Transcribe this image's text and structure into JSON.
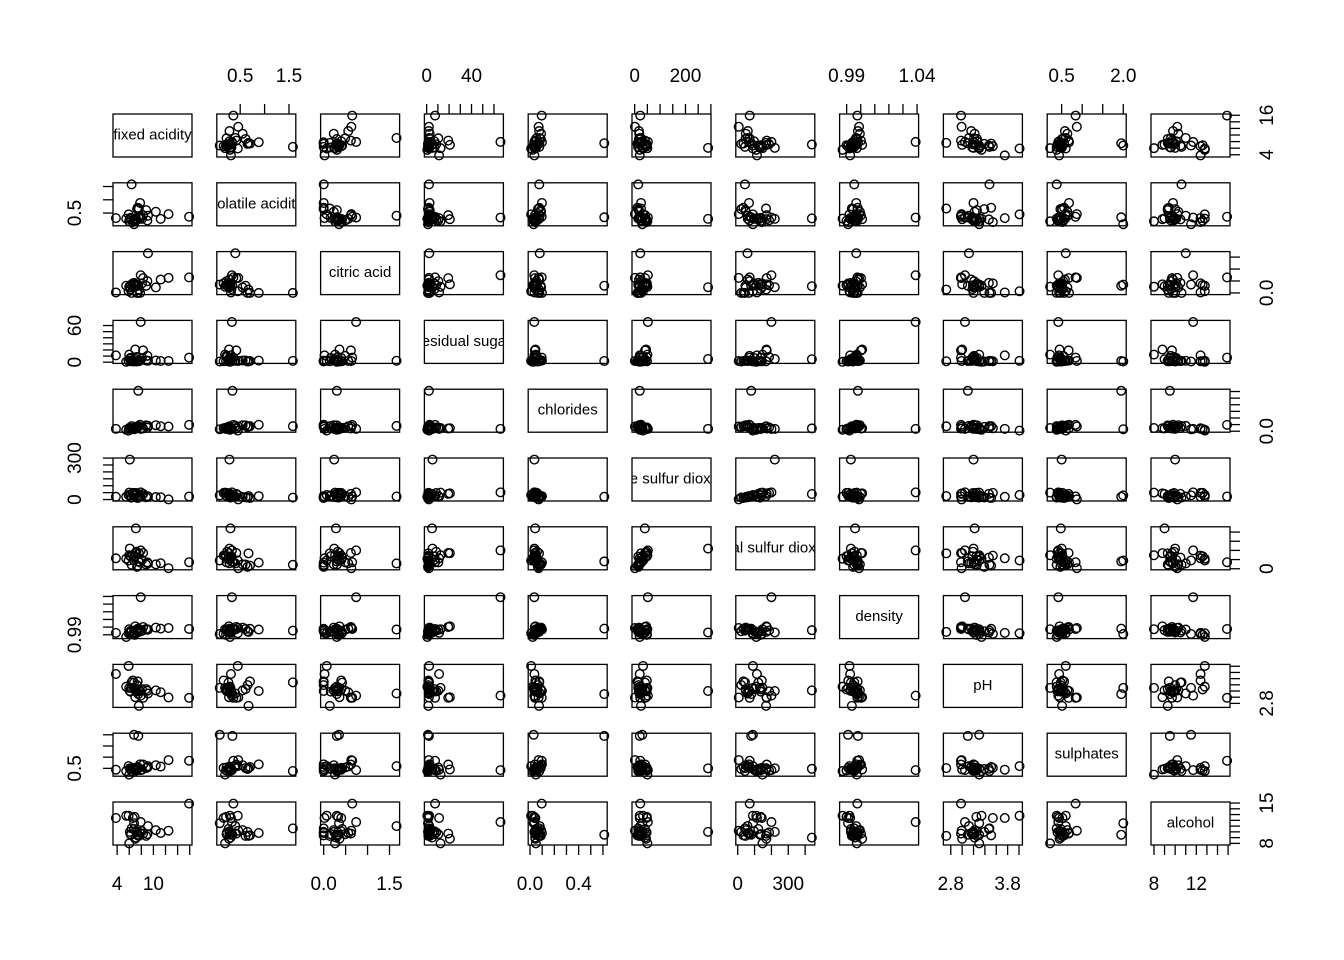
{
  "chart_data": {
    "type": "scatter-matrix",
    "variables": [
      {
        "name": "fixed acidity",
        "lim": [
          3.32,
          16.38
        ],
        "ticks": [
          4,
          6,
          8,
          10,
          12,
          14,
          16
        ],
        "values": [
          7.4,
          7.8,
          11.2,
          7.0,
          6.3,
          8.1,
          7.2,
          6.2,
          6.6,
          8.3,
          6.8,
          5.5,
          9.0,
          7.6,
          10.4,
          15.9,
          6.4,
          9.1,
          7.9,
          7.5,
          6.1,
          7.1,
          3.8,
          6.9,
          5.9,
          12.5,
          6.8,
          8.8,
          7.3,
          6.0
        ]
      },
      {
        "name": "volatile acidity",
        "lim": [
          0.02,
          1.64
        ],
        "ticks": [
          0.5,
          {
            "value": 1,
            "label": "1.0"
          },
          1.5
        ],
        "values": [
          0.7,
          0.88,
          0.28,
          0.27,
          0.3,
          0.28,
          0.23,
          0.32,
          0.16,
          0.42,
          0.26,
          0.29,
          0.22,
          0.67,
          0.55,
          0.36,
          1.58,
          0.4,
          0.33,
          0.34,
          0.28,
          0.3,
          0.31,
          0.21,
          0.45,
          0.46,
          0.08,
          0.61,
          0.65,
          0.19
        ]
      },
      {
        "name": "citric acid",
        "lim": [
          -0.07,
          1.73
        ],
        "ticks": [
          {
            "value": 0,
            "label": "0.0"
          },
          0.5,
          {
            "value": 1,
            "label": "1.0"
          },
          1.5
        ],
        "values": [
          0,
          0,
          0.56,
          0.36,
          0.34,
          0.4,
          0.32,
          0.16,
          0.4,
          0.62,
          0.42,
          0.3,
          0.49,
          0.14,
          0.23,
          0.65,
          0,
          1.66,
          0.74,
          0.3,
          0.24,
          0.28,
          0.02,
          0.33,
          0.07,
          0.63,
          0.35,
          0.3,
          0,
          0.26
        ]
      },
      {
        "name": "residual sugar",
        "lim": [
          -2.0,
          68.4
        ],
        "ticks": [
          0,
          10,
          20,
          30,
          40,
          50,
          60
        ],
        "values": [
          1.9,
          2.6,
          1.9,
          20.7,
          1.6,
          6.9,
          8.5,
          7.0,
          1.5,
          19.25,
          1.7,
          0.6,
          10.4,
          1.5,
          2.7,
          7.5,
          2.1,
          2.3,
          65.8,
          2.0,
          5.2,
          4.8,
          11.1,
          1.8,
          2.2,
          2.0,
          1.2,
          2.8,
          1.2,
          12.4
        ]
      },
      {
        "name": "chlorides",
        "lim": [
          -0.015,
          0.635
        ],
        "ticks": [
          {
            "value": 0,
            "label": "0.0"
          },
          0.1,
          0.2,
          0.3,
          0.4,
          0.5,
          0.6
        ],
        "values": [
          0.076,
          0.098,
          0.075,
          0.045,
          0.049,
          0.05,
          0.058,
          0.045,
          0.044,
          0.04,
          0.049,
          0.022,
          0.052,
          0.074,
          0.091,
          0.096,
          0.076,
          0.08,
          0.035,
          0.611,
          0.036,
          0.042,
          0.036,
          0.034,
          0.009,
          0.071,
          0.03,
          0.088,
          0.065,
          0.048
        ]
      },
      {
        "name": "free sulfur dioxide",
        "lim": [
          -10.5,
          300.5
        ],
        "ticks": [
          0,
          50,
          100,
          150,
          200,
          250,
          300
        ],
        "values": [
          11,
          25,
          17,
          45,
          14,
          30,
          47,
          30,
          48,
          41,
          41,
          20,
          25,
          25,
          18,
          22,
          14,
          22,
          52,
          20,
          289,
          40,
          20,
          48,
          33,
          1,
          30,
          17,
          15,
          50
        ]
      },
      {
        "name": "total sulfur dioxide",
        "lim": [
          -11.4,
          457.4
        ],
        "ticks": [
          0,
          100,
          200,
          300,
          400
        ],
        "values": [
          34,
          67,
          60,
          170,
          132,
          97,
          186,
          136,
          143,
          172,
          122,
          110,
          70,
          168,
          48,
          71,
          43,
          58,
          200,
          80,
          220,
          440,
          114,
          136,
          90,
          6,
          90,
          46,
          21,
          147
        ]
      },
      {
        "name": "density",
        "lim": [
          0.985,
          1.0411
        ],
        "ticks": [
          0.99,
          {
            "value": 1,
            "label": "1.00"
          },
          1.01,
          1.02,
          1.03,
          1.04
        ],
        "values": [
          0.9978,
          0.9968,
          0.998,
          1.001,
          0.994,
          0.9951,
          0.9956,
          0.9949,
          0.9912,
          1.0002,
          0.993,
          0.9871,
          0.9966,
          0.9937,
          0.9994,
          0.9976,
          0.9954,
          0.9968,
          1.039,
          0.998,
          0.993,
          0.996,
          0.9925,
          0.9899,
          0.992,
          0.9988,
          0.991,
          0.9976,
          0.9946,
          0.9972
        ]
      },
      {
        "name": "pH",
        "lim": [
          2.67,
          4.06
        ],
        "ticks": [
          2.8,
          {
            "value": 3,
            "label": "3.0"
          },
          3.2,
          3.4,
          3.6,
          3.8,
          {
            "value": 4,
            "label": "4.0"
          }
        ],
        "values": [
          3.51,
          3.2,
          3.16,
          3,
          3.3,
          3.26,
          3.19,
          3.18,
          3.54,
          2.98,
          3.47,
          3.34,
          3.21,
          2.72,
          3.22,
          2.98,
          3.48,
          3.12,
          3.05,
          3.1,
          3.2,
          3.22,
          3.75,
          3.25,
          4.01,
          2.99,
          3.3,
          3.26,
          3.39,
          3.3
        ]
      },
      {
        "name": "sulphates",
        "lim": [
          0.149,
          2.071
        ],
        "ticks": [
          0.5,
          {
            "value": 1,
            "label": "1.0"
          },
          1.5,
          {
            "value": 2,
            "label": "2.0"
          }
        ],
        "values": [
          0.56,
          0.68,
          0.58,
          0.45,
          0.49,
          0.44,
          0.4,
          0.47,
          0.52,
          0.67,
          0.48,
          0.38,
          0.54,
          0.51,
          0.64,
          0.84,
          0.38,
          0.6,
          0.42,
          1.95,
          0.5,
          0.48,
          0.44,
          0.41,
          0.6,
          0.87,
          2.0,
          0.51,
          0.47,
          0.22
        ]
      },
      {
        "name": "alcohol",
        "lim": [
          7.72,
          15.18
        ],
        "ticks": [
          8,
          9,
          10,
          11,
          12,
          13,
          14,
          15
        ],
        "values": [
          9.4,
          9.8,
          9.8,
          8.8,
          9.5,
          10.1,
          9.9,
          9.6,
          12.4,
          9.7,
          10.5,
          12.8,
          9.6,
          9.3,
          10.3,
          14.9,
          10.6,
          11,
          11.7,
          9.5,
          10,
          9,
          12.4,
          12.6,
          12.8,
          10.2,
          11.5,
          9.3,
          10,
          8
        ]
      }
    ]
  }
}
